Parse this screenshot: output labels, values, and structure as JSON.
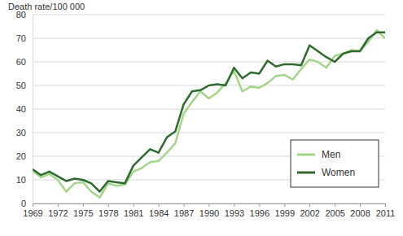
{
  "chart_data": {
    "type": "line",
    "y_label": "Death rate/100 000",
    "x": [
      1969,
      1970,
      1971,
      1972,
      1973,
      1974,
      1975,
      1976,
      1977,
      1978,
      1979,
      1980,
      1981,
      1982,
      1983,
      1984,
      1985,
      1986,
      1987,
      1988,
      1989,
      1990,
      1991,
      1992,
      1993,
      1994,
      1995,
      1996,
      1997,
      1998,
      1999,
      2000,
      2001,
      2002,
      2003,
      2004,
      2005,
      2006,
      2007,
      2008,
      2009,
      2010,
      2011
    ],
    "series": [
      {
        "name": "Men",
        "color": "#a3d68a",
        "values": [
          14,
          11,
          12.5,
          10,
          5,
          8.5,
          9,
          5,
          2.5,
          8.5,
          7.5,
          8,
          13.5,
          15,
          17.5,
          18,
          21.5,
          25.5,
          38,
          43,
          47.5,
          44.5,
          47,
          51,
          56,
          47.5,
          49.5,
          49,
          51,
          54,
          54.5,
          52.5,
          57,
          61,
          60,
          57.5,
          62.5,
          63.5,
          65,
          64.5,
          68.5,
          73.5,
          70
        ]
      },
      {
        "name": "Women",
        "color": "#2f6b2f",
        "values": [
          14.5,
          12,
          13.5,
          11.5,
          9.5,
          10.5,
          10,
          8.5,
          5,
          9.5,
          9,
          8.5,
          16,
          19.5,
          23,
          21.5,
          28,
          30.5,
          42,
          47.5,
          48,
          50,
          50.5,
          50,
          57.5,
          53,
          55.5,
          55,
          60.5,
          58,
          59,
          59,
          58.5,
          67,
          64.5,
          62,
          60,
          63.5,
          64.5,
          64.5,
          70,
          72.5,
          72.5
        ]
      }
    ],
    "xlim": [
      1969,
      2011
    ],
    "xticks": [
      1969,
      1972,
      1975,
      1978,
      1981,
      1984,
      1987,
      1990,
      1993,
      1996,
      1999,
      2002,
      2005,
      2008,
      2011
    ],
    "ylim": [
      0,
      80
    ],
    "yticks": [
      0,
      10,
      20,
      30,
      40,
      50,
      60,
      70,
      80
    ],
    "grid": true,
    "legend": "bottom right"
  }
}
